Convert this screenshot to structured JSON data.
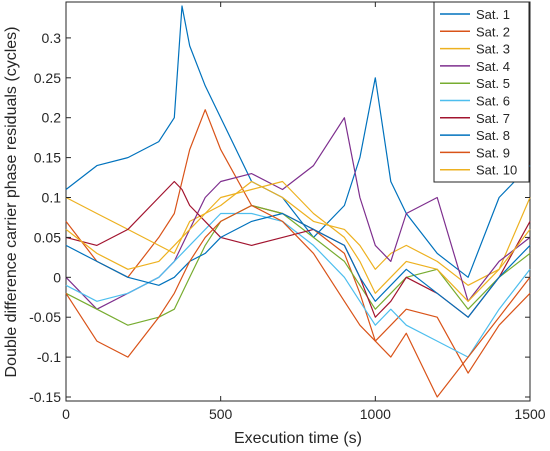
{
  "chart_data": {
    "type": "line",
    "xlabel": "Execution time (s)",
    "ylabel": "Double difference carrier phase residuals (cycles)",
    "xlim": [
      0,
      1500
    ],
    "ylim": [
      -0.155,
      0.345
    ],
    "xticks": [
      0,
      500,
      1000,
      1500
    ],
    "yticks": [
      -0.15,
      -0.1,
      -0.05,
      0,
      0.05,
      0.1,
      0.15,
      0.2,
      0.25,
      0.3
    ],
    "xtick_labels": [
      "0",
      "500",
      "1000",
      "1500"
    ],
    "ytick_labels": [
      "-0.15",
      "-0.1",
      "-0.05",
      "0",
      "0.05",
      "0.1",
      "0.15",
      "0.2",
      "0.25",
      "0.3"
    ],
    "legend_position": "top-right",
    "grid": false,
    "x": [
      0,
      100,
      200,
      300,
      350,
      375,
      400,
      450,
      500,
      600,
      700,
      800,
      900,
      950,
      1000,
      1050,
      1100,
      1200,
      1300,
      1400,
      1500
    ],
    "series": [
      {
        "name": "Sat. 1",
        "color": "#0072BD",
        "values": [
          0.11,
          0.14,
          0.15,
          0.17,
          0.2,
          0.34,
          0.29,
          0.24,
          0.2,
          0.12,
          0.1,
          0.05,
          0.09,
          0.15,
          0.25,
          0.12,
          0.08,
          0.03,
          0.0,
          0.1,
          0.14
        ]
      },
      {
        "name": "Sat. 2",
        "color": "#D95319",
        "values": [
          0.07,
          0.02,
          0.0,
          0.05,
          0.08,
          0.12,
          0.16,
          0.21,
          0.16,
          0.09,
          0.08,
          0.06,
          0.03,
          -0.02,
          -0.08,
          -0.06,
          -0.04,
          -0.05,
          -0.12,
          -0.06,
          -0.02
        ]
      },
      {
        "name": "Sat. 3",
        "color": "#EDB120",
        "values": [
          0.1,
          0.08,
          0.06,
          0.04,
          0.03,
          0.05,
          0.07,
          0.08,
          0.09,
          0.12,
          0.1,
          0.07,
          0.06,
          0.04,
          0.01,
          0.03,
          0.04,
          0.02,
          -0.01,
          0.01,
          0.1
        ]
      },
      {
        "name": "Sat. 4",
        "color": "#7E2F8E",
        "values": [
          0.0,
          -0.04,
          -0.02,
          0.0,
          0.02,
          0.04,
          0.06,
          0.1,
          0.12,
          0.13,
          0.11,
          0.14,
          0.2,
          0.1,
          0.04,
          0.02,
          0.08,
          0.1,
          -0.03,
          0.02,
          0.05
        ]
      },
      {
        "name": "Sat. 5",
        "color": "#77AC30",
        "values": [
          -0.02,
          -0.04,
          -0.06,
          -0.05,
          -0.04,
          -0.02,
          0.0,
          0.04,
          0.07,
          0.09,
          0.08,
          0.05,
          0.02,
          -0.01,
          -0.04,
          -0.02,
          0.0,
          0.01,
          -0.04,
          0.0,
          0.03
        ]
      },
      {
        "name": "Sat. 6",
        "color": "#4DBEEE",
        "values": [
          -0.01,
          -0.03,
          -0.02,
          0.0,
          0.02,
          0.03,
          0.04,
          0.06,
          0.08,
          0.08,
          0.07,
          0.04,
          0.0,
          -0.03,
          -0.06,
          -0.04,
          -0.06,
          -0.08,
          -0.1,
          -0.04,
          0.01
        ]
      },
      {
        "name": "Sat. 7",
        "color": "#A2142F",
        "values": [
          0.05,
          0.04,
          0.06,
          0.1,
          0.12,
          0.11,
          0.09,
          0.07,
          0.05,
          0.04,
          0.05,
          0.06,
          0.04,
          0.0,
          -0.05,
          -0.03,
          0.0,
          -0.02,
          -0.05,
          0.0,
          0.07
        ]
      },
      {
        "name": "Sat. 8",
        "color": "#0072BD",
        "values": [
          0.04,
          0.02,
          0.0,
          -0.01,
          0.0,
          0.01,
          0.02,
          0.03,
          0.05,
          0.07,
          0.08,
          0.06,
          0.04,
          0.0,
          -0.03,
          -0.01,
          0.01,
          -0.02,
          -0.05,
          0.0,
          0.04
        ]
      },
      {
        "name": "Sat. 9",
        "color": "#D95319",
        "values": [
          -0.02,
          -0.08,
          -0.1,
          -0.05,
          -0.02,
          0.0,
          0.02,
          0.05,
          0.07,
          0.09,
          0.07,
          0.03,
          -0.03,
          -0.06,
          -0.08,
          -0.1,
          -0.07,
          -0.15,
          -0.1,
          -0.05,
          0.0
        ]
      },
      {
        "name": "Sat. 10",
        "color": "#EDB120",
        "values": [
          0.06,
          0.03,
          0.01,
          0.02,
          0.04,
          0.05,
          0.06,
          0.08,
          0.1,
          0.11,
          0.12,
          0.08,
          0.05,
          0.02,
          -0.02,
          0.0,
          0.02,
          0.01,
          -0.03,
          0.01,
          0.06
        ]
      }
    ]
  }
}
